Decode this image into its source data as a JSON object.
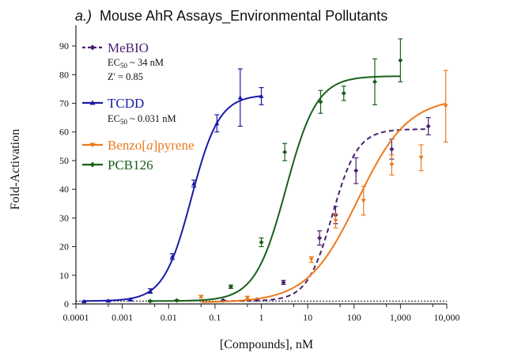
{
  "chart_data": {
    "type": "scatter",
    "title_prefix": "a.)",
    "title": "Mouse AhR Assays_Environmental Pollutants",
    "xlabel": "[Compounds], nM",
    "ylabel": "Fold-Activation",
    "xscale": "log",
    "xlim": [
      0.0001,
      10000
    ],
    "ylim": [
      0,
      95
    ],
    "xticks": [
      0.0001,
      0.0005,
      0.001,
      0.005,
      0.01,
      0.05,
      0.1,
      0.5,
      1,
      5,
      10,
      50,
      100,
      500,
      1000,
      5000,
      10000
    ],
    "xtick_labels": [
      "0.0001",
      "0.001",
      "0.01",
      "0.1",
      "1",
      "10",
      "100",
      "1,000",
      "10,000"
    ],
    "yticks": [
      0,
      10,
      20,
      30,
      40,
      50,
      60,
      70,
      80,
      90
    ],
    "baseline": 1,
    "legend_position": "top-left",
    "series": [
      {
        "name": "MeBIO",
        "color": "#4b1f6f",
        "dashed": true,
        "marker": "diamond",
        "notes": [
          "EC50 ~ 34 nM",
          "Z' = 0.85"
        ],
        "fit": {
          "bottom": 1,
          "top": 61,
          "ec50": 34,
          "hill": 1.6
        },
        "points": [
          {
            "x": 0.15,
            "y": 1.2,
            "err": 0.2
          },
          {
            "x": 0.8,
            "y": 1.5,
            "err": 0.3
          },
          {
            "x": 3,
            "y": 7.5,
            "err": 0.7
          },
          {
            "x": 18,
            "y": 23,
            "err": 2.5
          },
          {
            "x": 40,
            "y": 31,
            "err": 3
          },
          {
            "x": 110,
            "y": 46.5,
            "err": 4.5
          },
          {
            "x": 650,
            "y": 54,
            "err": 3.5
          },
          {
            "x": 4000,
            "y": 62,
            "err": 3
          }
        ]
      },
      {
        "name": "TCDD",
        "color": "#1a1aa6",
        "dashed": false,
        "marker": "triangle",
        "notes": [
          "EC50 ~ 0.031 nM"
        ],
        "fit": {
          "bottom": 1,
          "top": 73,
          "ec50": 0.031,
          "hill": 1.45
        },
        "points": [
          {
            "x": 0.00015,
            "y": 0.9,
            "err": 0.2
          },
          {
            "x": 0.0005,
            "y": 1.1,
            "err": 0.2
          },
          {
            "x": 0.0015,
            "y": 1.5,
            "err": 0.3
          },
          {
            "x": 0.004,
            "y": 4.5,
            "err": 0.8
          },
          {
            "x": 0.012,
            "y": 16.5,
            "err": 1
          },
          {
            "x": 0.035,
            "y": 42,
            "err": 1.2
          },
          {
            "x": 0.11,
            "y": 63,
            "err": 3
          },
          {
            "x": 0.35,
            "y": 72,
            "err": 10
          },
          {
            "x": 1.0,
            "y": 72.5,
            "err": 3
          }
        ]
      },
      {
        "name": "Benzo[a]pyrene",
        "name_before": "Benzo[",
        "name_italic": "a",
        "name_after": "]pyrene",
        "color": "#ec7a1c",
        "dashed": false,
        "marker": "triangle-down",
        "fit": {
          "bottom": 0.5,
          "top": 72,
          "ec50": 120,
          "hill": 0.8
        },
        "points": [
          {
            "x": 0.05,
            "y": 2.5,
            "err": 0.4
          },
          {
            "x": 0.5,
            "y": 2.2,
            "err": 0.4
          },
          {
            "x": 12,
            "y": 15.5,
            "err": 1
          },
          {
            "x": 40,
            "y": 29,
            "err": 2.5
          },
          {
            "x": 160,
            "y": 36,
            "err": 5
          },
          {
            "x": 650,
            "y": 48.5,
            "err": 3.5
          },
          {
            "x": 2800,
            "y": 51,
            "err": 4.5
          },
          {
            "x": 9500,
            "y": 69,
            "err": 12.5
          }
        ]
      },
      {
        "name": "PCB126",
        "color": "#196019",
        "dashed": false,
        "marker": "diamond",
        "fit": {
          "bottom": 1,
          "top": 79.5,
          "ec50": 3.4,
          "hill": 1.3
        },
        "points": [
          {
            "x": 0.004,
            "y": 1,
            "err": 0.2
          },
          {
            "x": 0.015,
            "y": 1.2,
            "err": 0.2
          },
          {
            "x": 0.22,
            "y": 6,
            "err": 0.6
          },
          {
            "x": 1.0,
            "y": 21.5,
            "err": 1.5
          },
          {
            "x": 3.2,
            "y": 53,
            "err": 3
          },
          {
            "x": 19,
            "y": 70.5,
            "err": 4
          },
          {
            "x": 60,
            "y": 73.5,
            "err": 2.5
          },
          {
            "x": 280,
            "y": 77.5,
            "err": 8
          },
          {
            "x": 1000,
            "y": 85,
            "err": 7.5
          }
        ]
      }
    ]
  }
}
